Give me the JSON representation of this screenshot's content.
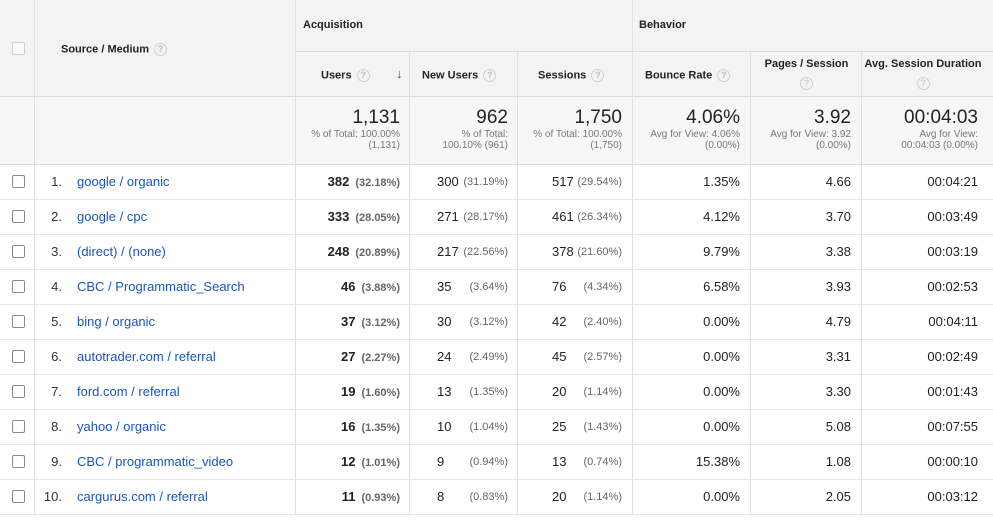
{
  "header": {
    "source_medium": "Source / Medium",
    "acquisition": "Acquisition",
    "behavior": "Behavior",
    "users": "Users",
    "new_users": "New Users",
    "sessions": "Sessions",
    "bounce_rate": "Bounce Rate",
    "pages_session": "Pages / Session",
    "avg_duration": "Avg. Session Duration",
    "help": "?"
  },
  "totals": {
    "users": {
      "value": "1,131",
      "line1": "% of Total: 100.00%",
      "line2": "(1,131)"
    },
    "new_users": {
      "value": "962",
      "line1": "% of Total:",
      "line2": "100.10% (961)"
    },
    "sessions": {
      "value": "1,750",
      "line1": "% of Total: 100.00%",
      "line2": "(1,750)"
    },
    "bounce_rate": {
      "value": "4.06%",
      "line1": "Avg for View: 4.06%",
      "line2": "(0.00%)"
    },
    "pages_session": {
      "value": "3.92",
      "line1": "Avg for View: 3.92",
      "line2": "(0.00%)"
    },
    "avg_duration": {
      "value": "00:04:03",
      "line1": "Avg for View:",
      "line2": "00:04:03 (0.00%)"
    }
  },
  "rows": [
    {
      "idx": "1.",
      "source": "google / organic",
      "users": "382",
      "users_pct": "(32.18%)",
      "new_users": "300",
      "new_users_pct": "(31.19%)",
      "sessions": "517",
      "sessions_pct": "(29.54%)",
      "bounce": "1.35%",
      "pages": "4.66",
      "duration": "00:04:21"
    },
    {
      "idx": "2.",
      "source": "google / cpc",
      "users": "333",
      "users_pct": "(28.05%)",
      "new_users": "271",
      "new_users_pct": "(28.17%)",
      "sessions": "461",
      "sessions_pct": "(26.34%)",
      "bounce": "4.12%",
      "pages": "3.70",
      "duration": "00:03:49"
    },
    {
      "idx": "3.",
      "source": "(direct) / (none)",
      "users": "248",
      "users_pct": "(20.89%)",
      "new_users": "217",
      "new_users_pct": "(22.56%)",
      "sessions": "378",
      "sessions_pct": "(21.60%)",
      "bounce": "9.79%",
      "pages": "3.38",
      "duration": "00:03:19"
    },
    {
      "idx": "4.",
      "source": "CBC / Programmatic_Search",
      "users": "46",
      "users_pct": "(3.88%)",
      "new_users": "35",
      "new_users_pct": "(3.64%)",
      "sessions": "76",
      "sessions_pct": "(4.34%)",
      "bounce": "6.58%",
      "pages": "3.93",
      "duration": "00:02:53"
    },
    {
      "idx": "5.",
      "source": "bing / organic",
      "users": "37",
      "users_pct": "(3.12%)",
      "new_users": "30",
      "new_users_pct": "(3.12%)",
      "sessions": "42",
      "sessions_pct": "(2.40%)",
      "bounce": "0.00%",
      "pages": "4.79",
      "duration": "00:04:11"
    },
    {
      "idx": "6.",
      "source": "autotrader.com / referral",
      "users": "27",
      "users_pct": "(2.27%)",
      "new_users": "24",
      "new_users_pct": "(2.49%)",
      "sessions": "45",
      "sessions_pct": "(2.57%)",
      "bounce": "0.00%",
      "pages": "3.31",
      "duration": "00:02:49"
    },
    {
      "idx": "7.",
      "source": "ford.com / referral",
      "users": "19",
      "users_pct": "(1.60%)",
      "new_users": "13",
      "new_users_pct": "(1.35%)",
      "sessions": "20",
      "sessions_pct": "(1.14%)",
      "bounce": "0.00%",
      "pages": "3.30",
      "duration": "00:01:43"
    },
    {
      "idx": "8.",
      "source": "yahoo / organic",
      "users": "16",
      "users_pct": "(1.35%)",
      "new_users": "10",
      "new_users_pct": "(1.04%)",
      "sessions": "25",
      "sessions_pct": "(1.43%)",
      "bounce": "0.00%",
      "pages": "5.08",
      "duration": "00:07:55"
    },
    {
      "idx": "9.",
      "source": "CBC / programmatic_video",
      "users": "12",
      "users_pct": "(1.01%)",
      "new_users": "9",
      "new_users_pct": "(0.94%)",
      "sessions": "13",
      "sessions_pct": "(0.74%)",
      "bounce": "15.38%",
      "pages": "1.08",
      "duration": "00:00:10"
    },
    {
      "idx": "10.",
      "source": "cargurus.com / referral",
      "users": "11",
      "users_pct": "(0.93%)",
      "new_users": "8",
      "new_users_pct": "(0.83%)",
      "sessions": "20",
      "sessions_pct": "(1.14%)",
      "bounce": "0.00%",
      "pages": "2.05",
      "duration": "00:03:12"
    }
  ]
}
